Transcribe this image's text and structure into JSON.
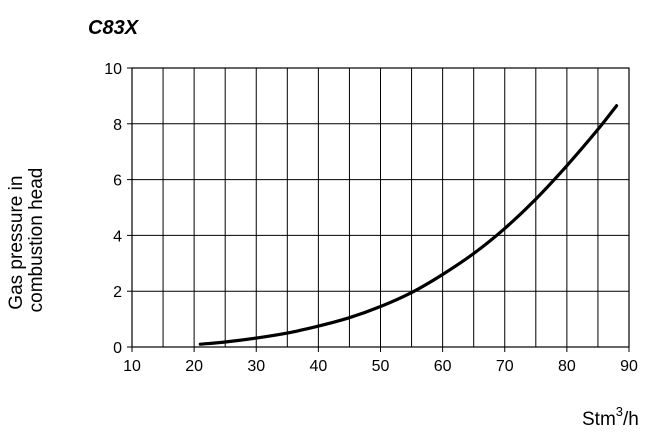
{
  "chart_data": {
    "type": "line",
    "title": "C83X",
    "ylabel_lines": [
      "Gas pressure in",
      "combustion head"
    ],
    "xlabel": {
      "base": "Stm",
      "sup": "3",
      "suffix": "/h"
    },
    "xlim": [
      10,
      90
    ],
    "ylim": [
      0,
      10
    ],
    "x_ticks": [
      10,
      20,
      30,
      40,
      50,
      60,
      70,
      80,
      90
    ],
    "y_ticks": [
      0,
      2,
      4,
      6,
      8,
      10
    ],
    "x_grid_step": 5,
    "y_grid_step": 2,
    "grid": true,
    "series": [
      {
        "color": "#000000",
        "x": [
          21,
          25,
          30,
          35,
          40,
          45,
          50,
          55,
          60,
          65,
          70,
          75,
          80,
          85,
          88
        ],
        "y": [
          0.1,
          0.18,
          0.32,
          0.5,
          0.75,
          1.05,
          1.45,
          1.95,
          2.6,
          3.35,
          4.25,
          5.3,
          6.5,
          7.8,
          8.65
        ]
      }
    ]
  }
}
